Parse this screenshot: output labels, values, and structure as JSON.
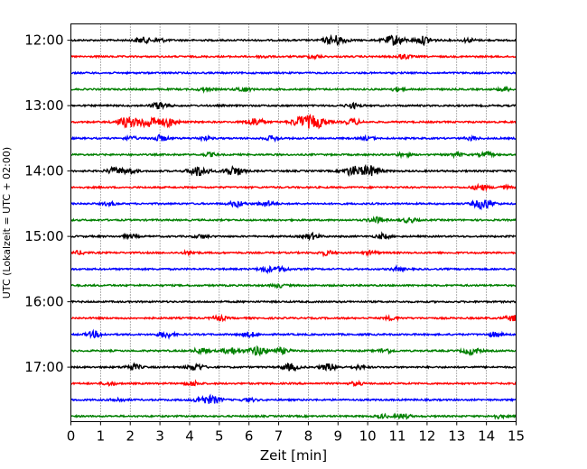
{
  "chart_data": {
    "type": "line",
    "title": "",
    "xlabel": "Zeit  [min]",
    "ylabel": "UTC (Lokalzeit = UTC + 02:00)",
    "xlim": [
      0,
      15
    ],
    "x_ticks": [
      0,
      1,
      2,
      3,
      4,
      5,
      6,
      7,
      8,
      9,
      10,
      11,
      12,
      13,
      14,
      15
    ],
    "y_tick_labels": [
      "12:00",
      "13:00",
      "14:00",
      "15:00",
      "16:00",
      "17:00"
    ],
    "y_range_hours": [
      "11:45",
      "17:50"
    ],
    "grid": "vertical dotted at each minute",
    "legend": "none",
    "series_color_cycle": [
      "#000000",
      "#ff0000",
      "#0000ff",
      "#008000"
    ],
    "series": [
      {
        "start": "12:00",
        "bursts": [
          [
            2.4,
            0.5
          ],
          [
            3.0,
            0.3
          ],
          [
            8.7,
            0.4
          ],
          [
            9.0,
            0.7
          ],
          [
            10.9,
            0.9
          ],
          [
            11.9,
            0.7
          ],
          [
            13.4,
            0.3
          ]
        ]
      },
      {
        "start": "12:15",
        "bursts": [
          [
            6.5,
            0.2
          ],
          [
            8.2,
            0.3
          ],
          [
            11.2,
            0.4
          ]
        ]
      },
      {
        "start": "12:30",
        "bursts": []
      },
      {
        "start": "12:45",
        "bursts": [
          [
            4.5,
            0.3
          ],
          [
            5.8,
            0.4
          ],
          [
            11.0,
            0.3
          ],
          [
            14.6,
            0.3
          ]
        ]
      },
      {
        "start": "13:00",
        "bursts": [
          [
            3.0,
            0.6
          ],
          [
            9.5,
            0.4
          ]
        ]
      },
      {
        "start": "13:15",
        "bursts": [
          [
            1.9,
            0.9
          ],
          [
            2.6,
            1.0
          ],
          [
            3.3,
            0.7
          ],
          [
            6.2,
            0.7
          ],
          [
            7.8,
            1.0
          ],
          [
            8.3,
            0.9
          ],
          [
            9.5,
            0.5
          ]
        ]
      },
      {
        "start": "13:30",
        "bursts": [
          [
            2.0,
            0.3
          ],
          [
            3.0,
            0.5
          ],
          [
            4.5,
            0.3
          ],
          [
            6.8,
            0.4
          ],
          [
            10.0,
            0.3
          ],
          [
            13.5,
            0.3
          ]
        ]
      },
      {
        "start": "13:45",
        "bursts": [
          [
            4.7,
            0.3
          ],
          [
            11.2,
            0.3
          ],
          [
            13.0,
            0.3
          ],
          [
            14.0,
            0.4
          ]
        ]
      },
      {
        "start": "14:00",
        "bursts": [
          [
            1.5,
            0.6
          ],
          [
            2.0,
            0.4
          ],
          [
            4.3,
            0.9
          ],
          [
            5.5,
            0.8
          ],
          [
            9.5,
            0.8
          ],
          [
            10.1,
            0.9
          ]
        ]
      },
      {
        "start": "14:15",
        "bursts": [
          [
            13.8,
            0.5
          ],
          [
            14.6,
            0.3
          ]
        ]
      },
      {
        "start": "14:30",
        "bursts": [
          [
            1.3,
            0.3
          ],
          [
            5.6,
            0.5
          ],
          [
            6.6,
            0.5
          ],
          [
            13.9,
            0.9
          ]
        ]
      },
      {
        "start": "14:45",
        "bursts": [
          [
            10.3,
            0.5
          ],
          [
            11.4,
            0.4
          ]
        ]
      },
      {
        "start": "15:00",
        "bursts": [
          [
            2.0,
            0.3
          ],
          [
            4.4,
            0.3
          ],
          [
            8.1,
            0.5
          ],
          [
            10.5,
            0.4
          ]
        ]
      },
      {
        "start": "15:15",
        "bursts": [
          [
            0.3,
            0.3
          ],
          [
            4.0,
            0.3
          ],
          [
            8.6,
            0.4
          ],
          [
            10.1,
            0.3
          ]
        ]
      },
      {
        "start": "15:30",
        "bursts": [
          [
            6.6,
            0.5
          ],
          [
            7.1,
            0.4
          ],
          [
            11.0,
            0.3
          ]
        ]
      },
      {
        "start": "15:45",
        "bursts": [
          [
            7.0,
            0.3
          ]
        ]
      },
      {
        "start": "16:00",
        "bursts": []
      },
      {
        "start": "16:15",
        "bursts": [
          [
            5.0,
            0.4
          ],
          [
            10.8,
            0.3
          ],
          [
            14.9,
            0.5
          ]
        ]
      },
      {
        "start": "16:30",
        "bursts": [
          [
            0.8,
            0.5
          ],
          [
            3.2,
            0.5
          ],
          [
            6.0,
            0.4
          ],
          [
            14.3,
            0.4
          ]
        ]
      },
      {
        "start": "16:45",
        "bursts": [
          [
            4.4,
            0.5
          ],
          [
            5.4,
            0.6
          ],
          [
            6.3,
            0.8
          ],
          [
            7.1,
            0.5
          ],
          [
            10.6,
            0.4
          ],
          [
            13.5,
            0.6
          ]
        ]
      },
      {
        "start": "17:00",
        "bursts": [
          [
            2.1,
            0.5
          ],
          [
            4.2,
            0.6
          ],
          [
            7.4,
            0.6
          ],
          [
            8.7,
            0.6
          ],
          [
            9.7,
            0.3
          ]
        ]
      },
      {
        "start": "17:15",
        "bursts": [
          [
            1.3,
            0.3
          ],
          [
            4.1,
            0.4
          ],
          [
            9.6,
            0.3
          ]
        ]
      },
      {
        "start": "17:30",
        "bursts": [
          [
            1.6,
            0.3
          ],
          [
            4.4,
            0.5
          ],
          [
            4.8,
            0.6
          ],
          [
            6.0,
            0.3
          ]
        ]
      },
      {
        "start": "17:45",
        "bursts": [
          [
            10.5,
            0.3
          ],
          [
            11.2,
            0.4
          ],
          [
            14.4,
            0.3
          ]
        ]
      }
    ]
  }
}
